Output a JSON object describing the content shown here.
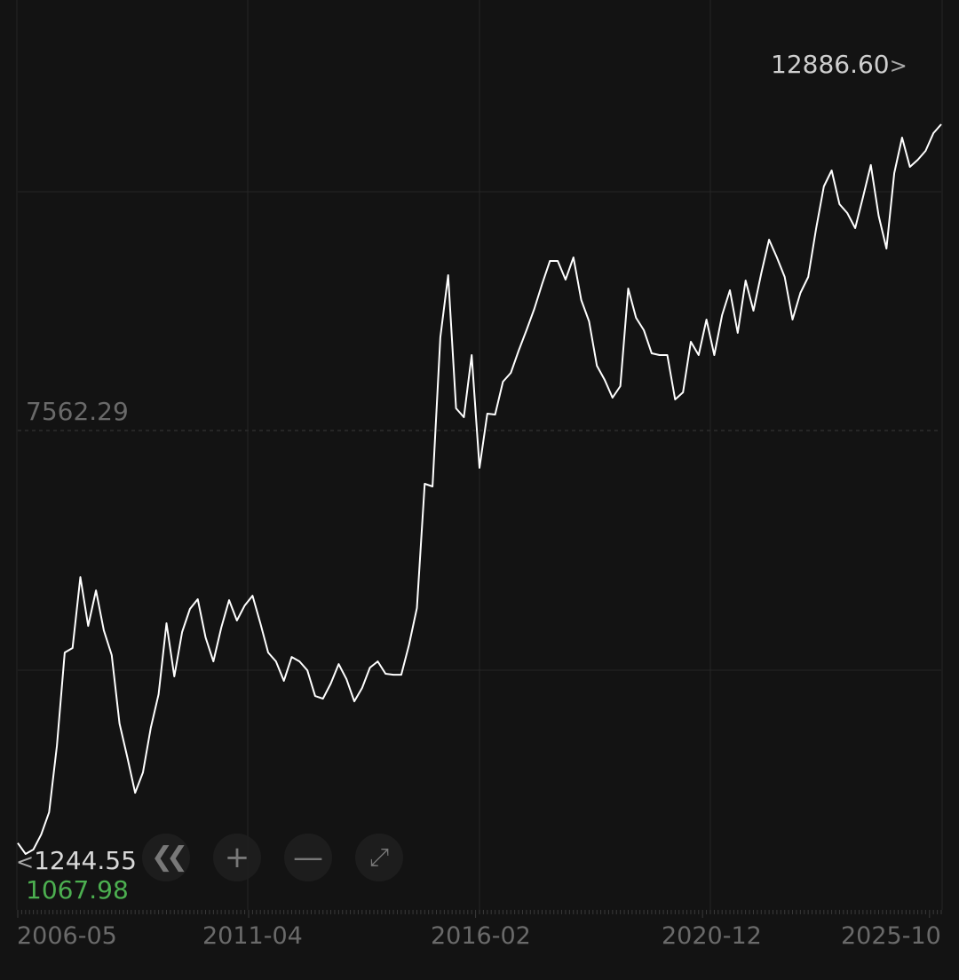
{
  "chart_data": {
    "type": "line",
    "title": "",
    "xlabel": "",
    "ylabel": "",
    "grid": true,
    "x_tick_labels": [
      "2006-05",
      "2011-04",
      "2016-02",
      "2020-12",
      "2025-10"
    ],
    "max_label": "12886.60",
    "min_label": "1067.98",
    "left_label": "1244.55",
    "reference_label": "7562.29",
    "ylim": [
      1067.98,
      12886.6
    ],
    "line_color": "#ffffff",
    "min_label_color": "#4caf50",
    "x": [
      "2006-05",
      "2006-07",
      "2006-09",
      "2006-11",
      "2007-01",
      "2007-03",
      "2007-05",
      "2007-07",
      "2007-09",
      "2007-11",
      "2008-01",
      "2008-03",
      "2008-05",
      "2008-07",
      "2008-09",
      "2008-11",
      "2009-01",
      "2009-03",
      "2009-05",
      "2009-07",
      "2009-09",
      "2009-11",
      "2010-01",
      "2010-03",
      "2010-05",
      "2010-07",
      "2010-09",
      "2010-11",
      "2011-01",
      "2011-03",
      "2011-05",
      "2011-07",
      "2011-09",
      "2011-11",
      "2012-01",
      "2012-03",
      "2012-05",
      "2012-07",
      "2012-09",
      "2012-11",
      "2013-01",
      "2013-03",
      "2013-05",
      "2013-07",
      "2013-09",
      "2013-11",
      "2014-01",
      "2014-03",
      "2014-05",
      "2014-07",
      "2014-09",
      "2014-11",
      "2015-01",
      "2015-03",
      "2015-05",
      "2015-07",
      "2015-09",
      "2015-11",
      "2016-01",
      "2016-03",
      "2016-05",
      "2016-07",
      "2016-09",
      "2016-11",
      "2017-01",
      "2017-03",
      "2017-05",
      "2017-07",
      "2017-09",
      "2017-11",
      "2018-01",
      "2018-03",
      "2018-05",
      "2018-07",
      "2018-09",
      "2018-11",
      "2019-01",
      "2019-03",
      "2019-05",
      "2019-07",
      "2019-09",
      "2019-11",
      "2020-01",
      "2020-03",
      "2020-05",
      "2020-07",
      "2020-09",
      "2020-11",
      "2021-01",
      "2021-03",
      "2021-05",
      "2021-07",
      "2021-09",
      "2021-11",
      "2022-01",
      "2022-03",
      "2022-05",
      "2022-07",
      "2022-09",
      "2022-11",
      "2023-01",
      "2023-03",
      "2023-05",
      "2023-07",
      "2023-09",
      "2023-11",
      "2024-01",
      "2024-03",
      "2024-05",
      "2024-07",
      "2024-09",
      "2024-11",
      "2025-01",
      "2025-03",
      "2025-05",
      "2025-07",
      "2025-09",
      "2025-11"
    ],
    "values": [
      1244.55,
      1067.98,
      1140,
      1383,
      1742,
      2821,
      4331,
      4403,
      5553,
      4762,
      5337,
      4690,
      4288,
      3180,
      2634,
      2059,
      2390,
      3109,
      3655,
      4805,
      3943,
      4662,
      5036,
      5194,
      4575,
      4187,
      4734,
      5179,
      4849,
      5093,
      5251,
      4805,
      4331,
      4187,
      3871,
      4259,
      4187,
      4043,
      3626,
      3583,
      3828,
      4144,
      3899,
      3540,
      3756,
      4086,
      4187,
      3986,
      3971,
      3971,
      4460,
      5050,
      7063,
      7020,
      9436,
      10442,
      8285,
      8142,
      9148,
      7322,
      8199,
      8185,
      8717,
      8861,
      9220,
      9551,
      9896,
      10299,
      10672,
      10672,
      10371,
      10730,
      10040,
      9695,
      8976,
      8746,
      8458,
      8645,
      10227,
      9752,
      9551,
      9177,
      9148,
      9148,
      8429,
      8544,
      9364,
      9148,
      9723,
      9148,
      9795,
      10198,
      9508,
      10356,
      9867,
      10471,
      11018,
      10730,
      10414,
      9723,
      10155,
      10414,
      11190,
      11880,
      12139,
      11593,
      11449,
      11204,
      11708,
      12226,
      11406,
      10874,
      12096,
      12671,
      12197,
      12312,
      12456,
      12743
    ],
    "last_value": 12886.6
  },
  "controls": {
    "back_icon": "double-chevron-left-icon",
    "zoom_in_icon": "plus-icon",
    "zoom_out_icon": "minus-icon",
    "fullscreen_icon": "expand-arrows-icon"
  }
}
